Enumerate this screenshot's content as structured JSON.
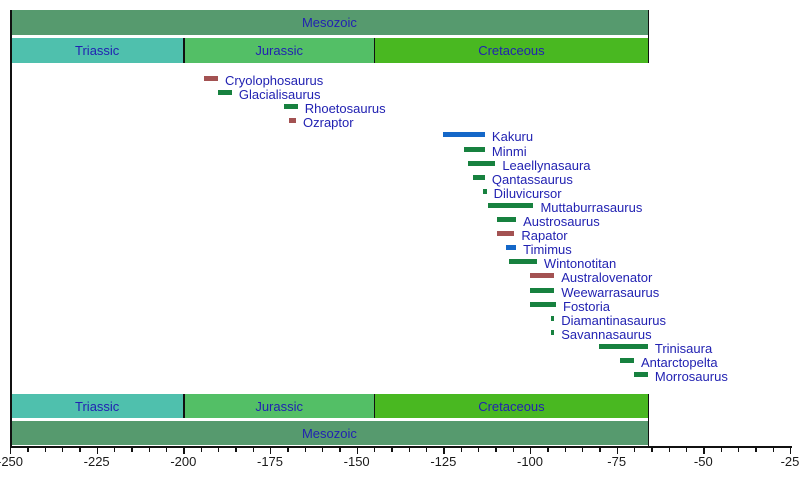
{
  "colors": {
    "background": "#ffffff",
    "era_fill": "#569A6E",
    "triassic_fill": "#4FC0AD",
    "jurassic_fill": "#53BF66",
    "cretaceous_fill": "#49B821",
    "band_label": "#2222B2",
    "taxon_label": "#2222B2",
    "axis": "#111111",
    "bar_green": "#17813F",
    "bar_blue": "#1467C8",
    "bar_red": "#A35252"
  },
  "chart_data": {
    "type": "bar",
    "subtype": "geologic-timeline",
    "title": "",
    "xlabel": "",
    "ylabel": "",
    "x_axis": {
      "min": -250,
      "max": -25,
      "major_tick_step": 25,
      "minor_tick_step": 5,
      "tick_labels": [
        "-250",
        "-225",
        "-200",
        "-175",
        "-150",
        "-125",
        "-100",
        "-75",
        "-50",
        "-25"
      ],
      "grid": false
    },
    "era": {
      "label": "Mesozoic",
      "start": -250,
      "end": -66
    },
    "periods": [
      {
        "label": "Triassic",
        "start": -250,
        "end": -200
      },
      {
        "label": "Jurassic",
        "start": -200,
        "end": -145
      },
      {
        "label": "Cretaceous",
        "start": -145,
        "end": -66
      }
    ],
    "taxa": [
      {
        "name": "Cryolophosaurus",
        "start": -194,
        "end": -190,
        "color": "red"
      },
      {
        "name": "Glacialisaurus",
        "start": -190,
        "end": -186,
        "color": "green"
      },
      {
        "name": "Rhoetosaurus",
        "start": -171,
        "end": -167,
        "color": "green"
      },
      {
        "name": "Ozraptor",
        "start": -169.5,
        "end": -167.5,
        "color": "red"
      },
      {
        "name": "Kakuru",
        "start": -125,
        "end": -113,
        "color": "blue"
      },
      {
        "name": "Minmi",
        "start": -119,
        "end": -113,
        "color": "green"
      },
      {
        "name": "Leaellynasaura",
        "start": -118,
        "end": -110,
        "color": "green"
      },
      {
        "name": "Qantassaurus",
        "start": -116.5,
        "end": -113,
        "color": "green"
      },
      {
        "name": "Diluvicursor",
        "start": -113.5,
        "end": -112.5,
        "color": "green"
      },
      {
        "name": "Muttaburrasaurus",
        "start": -112,
        "end": -99,
        "color": "green"
      },
      {
        "name": "Austrosaurus",
        "start": -109.5,
        "end": -104,
        "color": "green"
      },
      {
        "name": "Rapator",
        "start": -109.5,
        "end": -104.5,
        "color": "red"
      },
      {
        "name": "Timimus",
        "start": -107,
        "end": -104,
        "color": "blue"
      },
      {
        "name": "Wintonotitan",
        "start": -106,
        "end": -98,
        "color": "green"
      },
      {
        "name": "Australovenator",
        "start": -100,
        "end": -93,
        "color": "red"
      },
      {
        "name": "Weewarrasaurus",
        "start": -100,
        "end": -93,
        "color": "green"
      },
      {
        "name": "Fostoria",
        "start": -100,
        "end": -92.5,
        "color": "green"
      },
      {
        "name": "Diamantinasaurus",
        "start": -94,
        "end": -93,
        "color": "green"
      },
      {
        "name": "Savannasaurus",
        "start": -94,
        "end": -93,
        "color": "green"
      },
      {
        "name": "Trinisaura",
        "start": -80,
        "end": -66,
        "color": "green"
      },
      {
        "name": "Antarctopelta",
        "start": -74,
        "end": -70,
        "color": "green"
      },
      {
        "name": "Morrosaurus",
        "start": -70,
        "end": -66,
        "color": "green"
      }
    ]
  }
}
